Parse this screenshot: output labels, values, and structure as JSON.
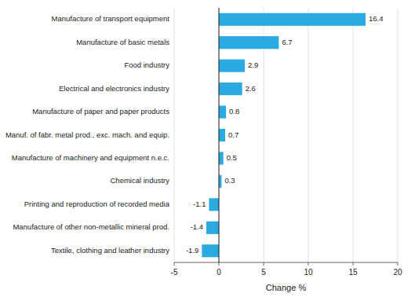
{
  "chart_data": {
    "type": "bar",
    "orientation": "horizontal",
    "categories": [
      "Textile, clothing and leather industry",
      "Manufacture of other non-metallic mineral prod.",
      "Printing and reproduction of recorded media",
      "Chemical industry",
      "Manufacture of machinery and equipment n.e.c.",
      "Manuf. of fabr. metal prod., exc. mach. and equip.",
      "Manufacture of paper and paper products",
      "Electrical and electronics industry",
      "Food industry",
      "Manufacture of basic metals",
      "Manufacture of transport equipment"
    ],
    "values": [
      -1.9,
      -1.4,
      -1.1,
      0.3,
      0.5,
      0.7,
      0.8,
      2.6,
      2.9,
      6.7,
      16.4
    ],
    "color": "#29abe2",
    "xlabel": "Change %",
    "xlim": [
      -5,
      20
    ],
    "xticks": [
      -5,
      0,
      5,
      10,
      15,
      20
    ],
    "grid": true,
    "data_labels": true
  }
}
